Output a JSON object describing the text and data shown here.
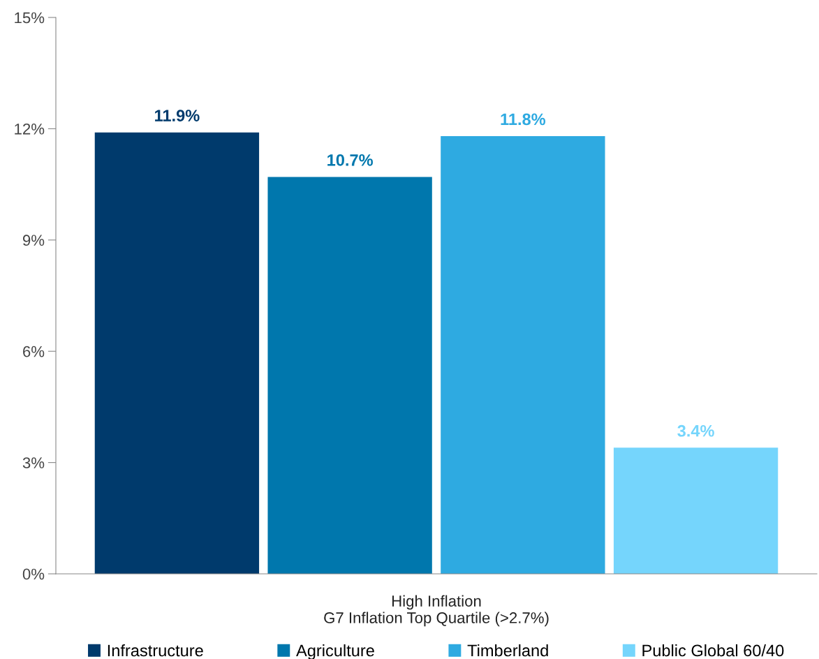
{
  "chart_data": {
    "type": "bar",
    "categories": [
      "High Inflation\nG7 Inflation Top Quartile (>2.7%)"
    ],
    "series": [
      {
        "name": "Infrastructure",
        "color": "#003a6c",
        "values": [
          11.9
        ],
        "value_labels": [
          "11.9%"
        ]
      },
      {
        "name": "Agriculture",
        "color": "#0077ad",
        "values": [
          10.7
        ],
        "value_labels": [
          "10.7%"
        ]
      },
      {
        "name": "Timberland",
        "color": "#2eaae1",
        "values": [
          11.8
        ],
        "value_labels": [
          "11.8%"
        ]
      },
      {
        "name": "Public Global 60/40",
        "color": "#75d5fc",
        "values": [
          3.4
        ],
        "value_labels": [
          "3.4%"
        ]
      }
    ],
    "ylim": [
      0,
      15
    ],
    "yticks": [
      {
        "value": 0,
        "label": "0%"
      },
      {
        "value": 3,
        "label": "3%"
      },
      {
        "value": 6,
        "label": "6%"
      },
      {
        "value": 9,
        "label": "9%"
      },
      {
        "value": 12,
        "label": "12%"
      },
      {
        "value": 15,
        "label": "15%"
      }
    ],
    "grid": false,
    "legend": "bottom"
  }
}
